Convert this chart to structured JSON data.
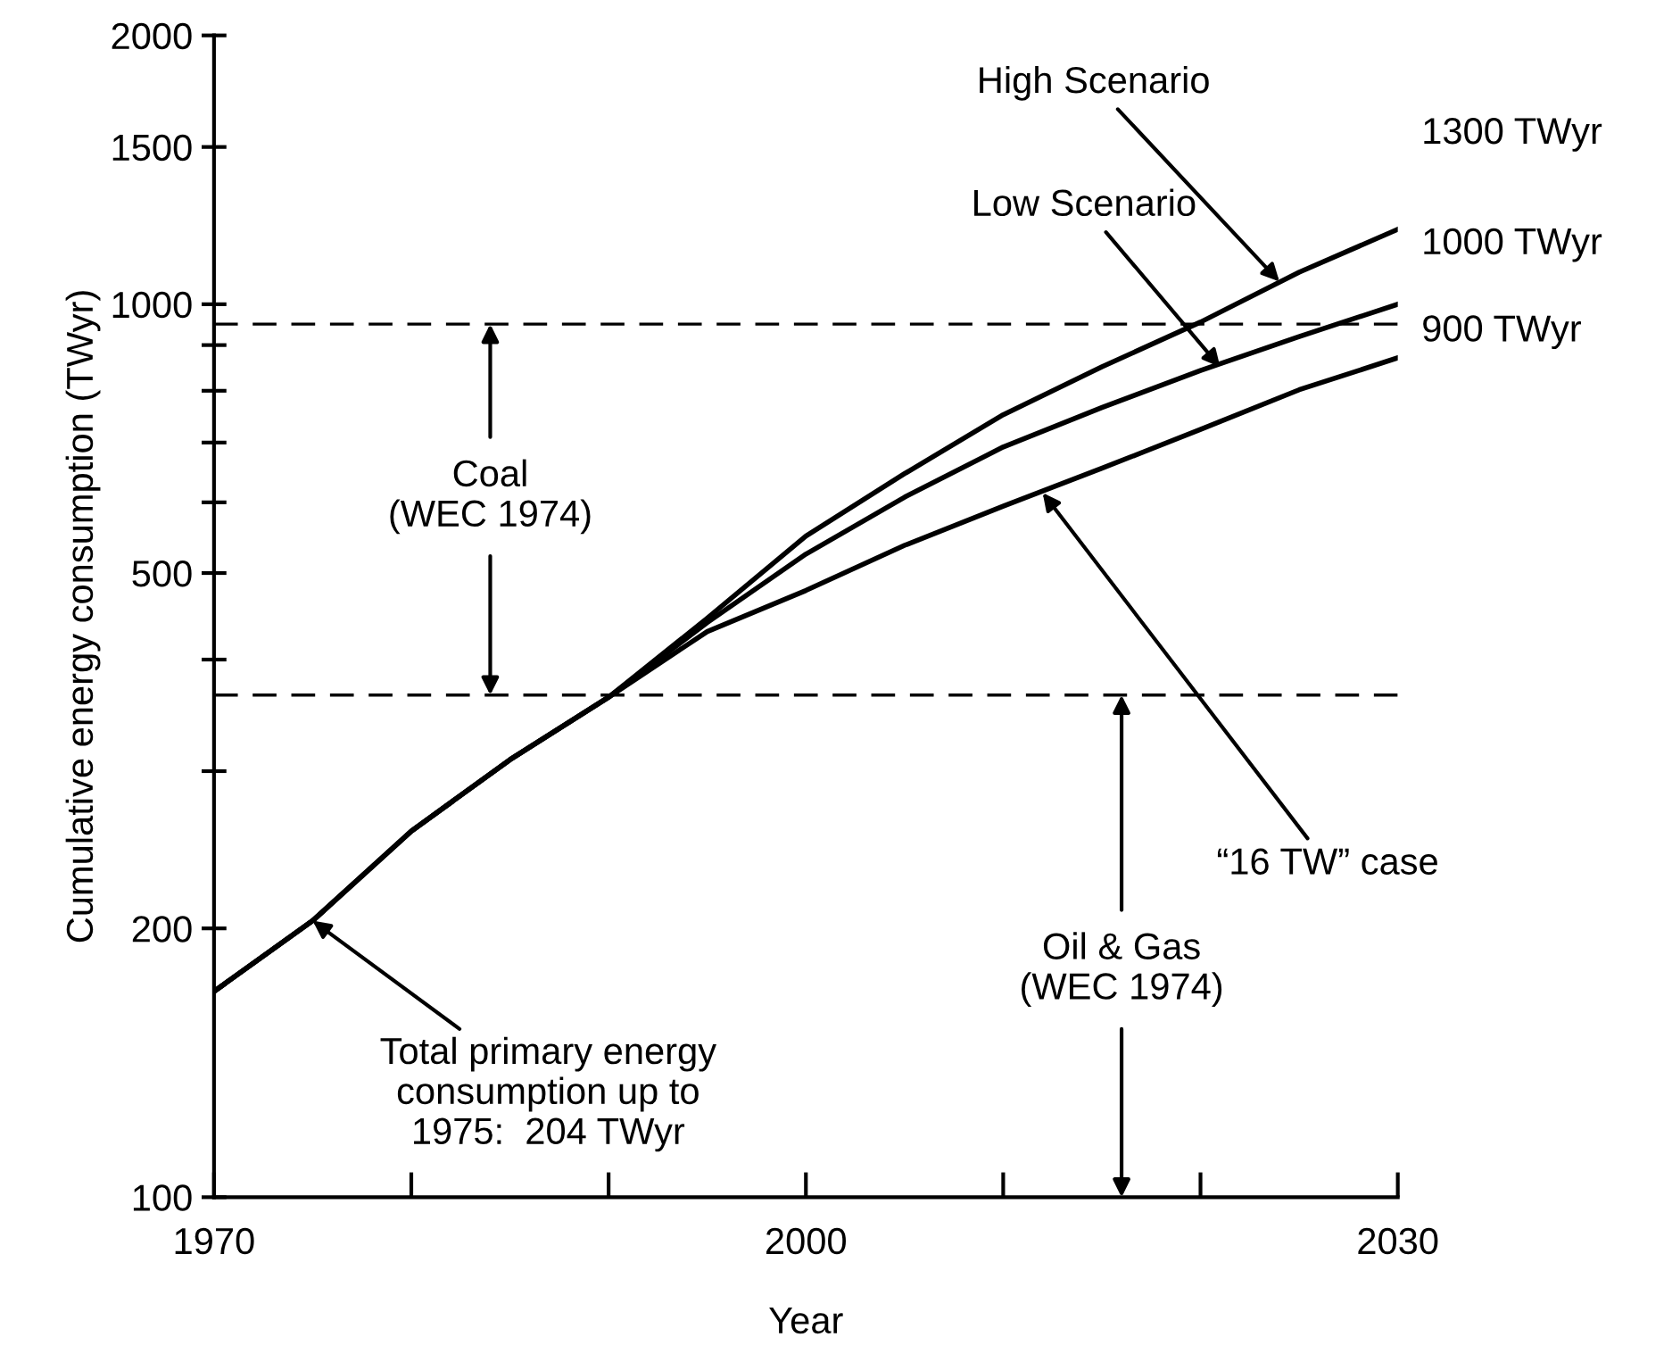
{
  "chart_data": {
    "type": "line",
    "xlabel": "Year",
    "ylabel": "Cumulative energy consumption (TWyr)",
    "log": "y",
    "xlim": [
      1970,
      2030
    ],
    "ylim": [
      100,
      2000
    ],
    "xticks": [
      1970,
      {
        "value": 1980,
        "label": null
      },
      {
        "value": 1990,
        "label": null
      },
      2000,
      {
        "value": 2010,
        "label": null
      },
      {
        "value": 2020,
        "label": null
      },
      2030
    ],
    "yticks": [
      100,
      200,
      {
        "value": 300,
        "label": null
      },
      {
        "value": 400,
        "label": null
      },
      500,
      {
        "value": 600,
        "label": null
      },
      {
        "value": 700,
        "label": null
      },
      {
        "value": 800,
        "label": null
      },
      {
        "value": 900,
        "label": null
      },
      1000,
      1500,
      2000
    ],
    "grid": false,
    "line_style": "solid",
    "x": [
      1970,
      1975,
      1980,
      1985,
      1990,
      1995,
      2000,
      2005,
      2010,
      2015,
      2020,
      2025,
      2030
    ],
    "series": [
      {
        "color": "#000000",
        "values": [
          170,
          204,
          257,
          309,
          363,
          445,
          550,
          646,
          752,
          851,
          955,
          1086,
          1213
        ]
      },
      {
        "color": "#000000",
        "values": [
          170,
          204,
          257,
          309,
          363,
          440,
          525,
          608,
          692,
          766,
          843,
          920,
          1000
        ]
      },
      {
        "color": "#000000",
        "values": [
          170,
          204,
          257,
          309,
          363,
          430,
          478,
          537,
          594,
          655,
          724,
          802,
          871
        ]
      }
    ],
    "ref_lines": [
      {
        "axis": "y",
        "value": 950,
        "color": "#000000",
        "line_style": "dashed"
      },
      {
        "axis": "y",
        "value": 365,
        "color": "#000000",
        "line_style": "dashed"
      }
    ],
    "annotations": [
      {
        "text": "High Scenario",
        "x": 2024,
        "y": 1060
      },
      {
        "text": "Low Scenario",
        "x": 2021,
        "y": 850
      },
      {
        "text": "“16 TW” case",
        "x": 2012,
        "y": 615
      },
      {
        "text": "Total primary energy\nconsumption up to\n1975:  204 TWyr",
        "x": 1975,
        "y": 204
      },
      {
        "text": "Coal\n(WEC 1974)",
        "x": 1984,
        "y": 950
      },
      {
        "text": "Oil & Gas\n(WEC 1974)",
        "x": 2016,
        "y": 365
      },
      "1300 TWyr",
      "1000 TWyr",
      "900 TWyr"
    ]
  }
}
